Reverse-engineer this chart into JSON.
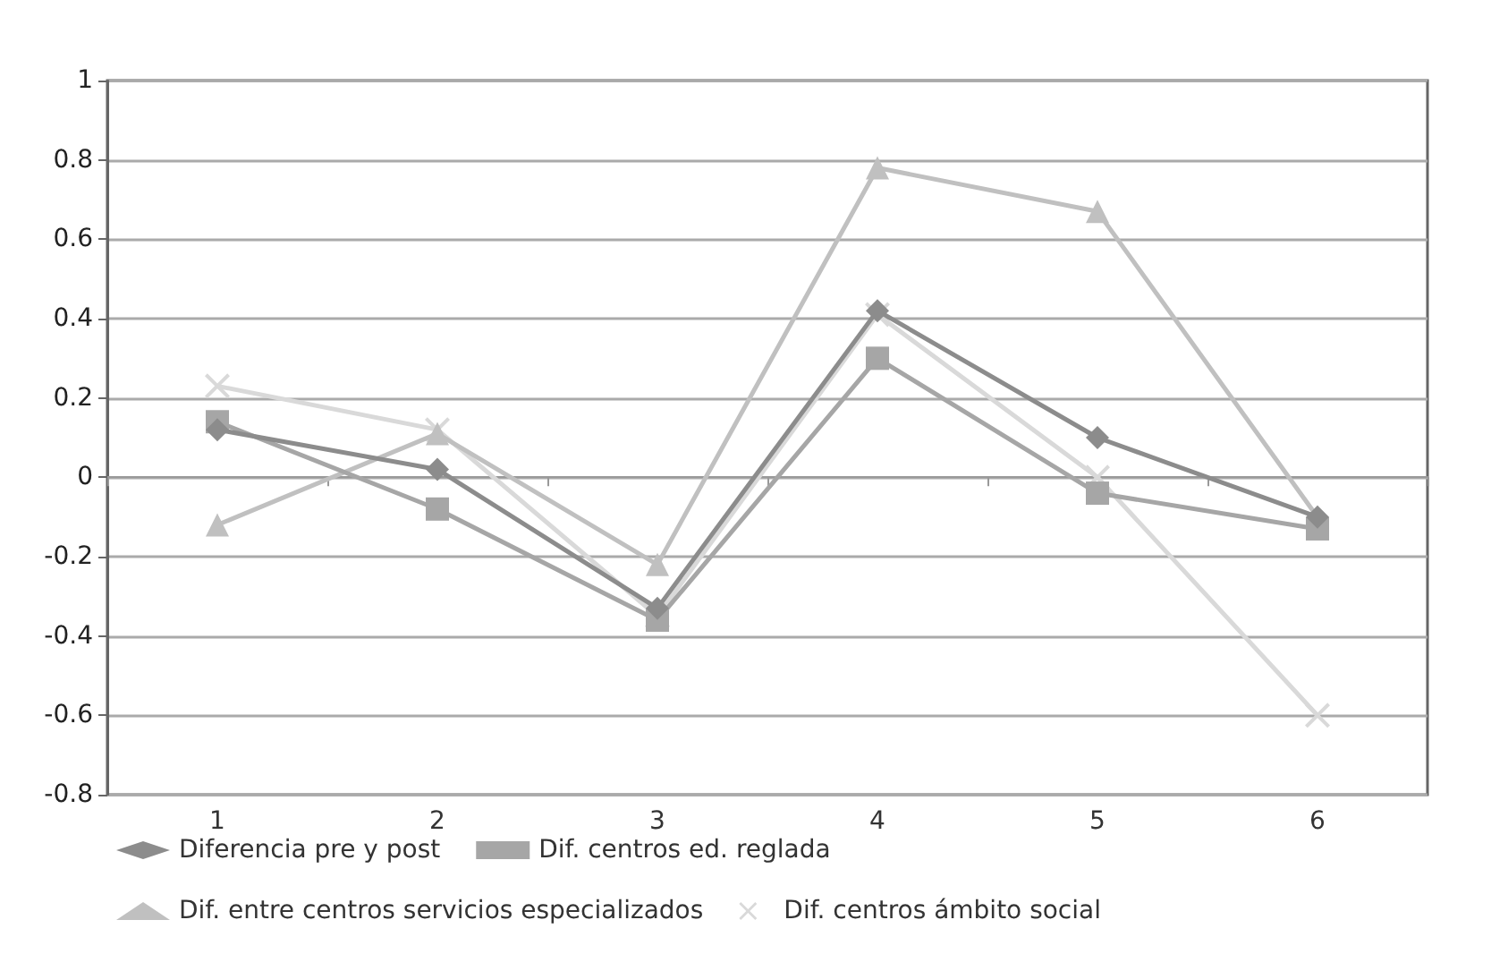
{
  "chart_data": {
    "type": "line",
    "categories": [
      "1",
      "2",
      "3",
      "4",
      "5",
      "6"
    ],
    "series": [
      {
        "name": "Diferencia pre y post",
        "color": "#8c8c8c",
        "marker": "diamond",
        "values": [
          0.12,
          0.02,
          -0.33,
          0.42,
          0.1,
          -0.1
        ]
      },
      {
        "name": "Dif. centros ed. reglada",
        "color": "#a6a6a6",
        "marker": "square",
        "values": [
          0.14,
          -0.08,
          -0.36,
          0.3,
          -0.04,
          -0.13
        ]
      },
      {
        "name": "Dif. entre centros servicios especializados",
        "color": "#c0c0c0",
        "marker": "triangle",
        "values": [
          -0.12,
          0.11,
          -0.22,
          0.78,
          0.67,
          -0.1
        ]
      },
      {
        "name": "Dif. centros ámbito social",
        "color": "#d9d9d9",
        "marker": "cross",
        "values": [
          0.23,
          0.12,
          -0.35,
          0.41,
          0.0,
          -0.6
        ]
      }
    ],
    "ylim": [
      -0.8,
      1
    ],
    "yticks": [
      -0.8,
      -0.6,
      -0.4,
      -0.2,
      0,
      0.2,
      0.4,
      0.6,
      0.8,
      1
    ],
    "grid": "y",
    "legend": "bottom"
  }
}
